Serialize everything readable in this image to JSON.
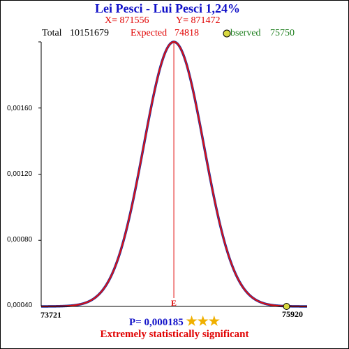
{
  "header": {
    "title": "Lei Pesci - Lui Pesci  1,24%",
    "x_label": "X= 871556",
    "y_label": "Y= 871472"
  },
  "stats": {
    "total_label": "Total",
    "total_value": "10151679",
    "expected_label": "Expected",
    "expected_value": "74818",
    "observed_label": "bserved",
    "observed_value": "75750"
  },
  "footer": {
    "p_value": "P= 0,000185",
    "stars": "★★★",
    "significance": "Extremely statistically significant"
  },
  "chart_data": {
    "type": "line",
    "title": "",
    "xlabel": "",
    "ylabel": "",
    "xlim": [
      73721,
      75920
    ],
    "ylim": [
      0,
      0.0016
    ],
    "x_tick_labels": [
      "73721",
      "75920"
    ],
    "y_tick_labels": [
      "0,00040",
      "0,00080",
      "0,00120",
      "0,00160"
    ],
    "y_ticks": [
      0.0004,
      0.0008,
      0.0012,
      0.0016
    ],
    "curve": {
      "kind": "normal",
      "mean": 74818,
      "peak_density": 0.0016
    },
    "expected_marker": {
      "x": 74818,
      "label": "E"
    },
    "observed_point": {
      "x": 75750,
      "y": 0
    },
    "colors": {
      "curve_fill": "#2030a0",
      "curve_outline": "#e01010",
      "marker_line": "#e01010",
      "observed_dot": "#d8d840",
      "axis": "#000000"
    }
  }
}
